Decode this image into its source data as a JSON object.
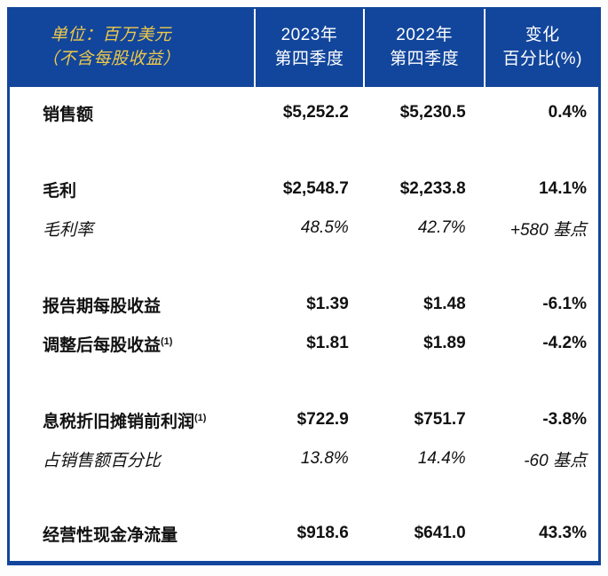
{
  "header": {
    "unit_line1": "单位：百万美元",
    "unit_line2": "（不含每股收益）",
    "col2023_line1": "2023年",
    "col2023_line2": "第四季度",
    "col2022_line1": "2022年",
    "col2022_line2": "第四季度",
    "change_line1": "变化",
    "change_line2": "百分比(%)"
  },
  "rows": [
    {
      "label": "销售额",
      "sup": "",
      "v2023": "$5,252.2",
      "v2022": "$5,230.5",
      "change": "0.4%"
    },
    {
      "label": "毛利",
      "sup": "",
      "v2023": "$2,548.7",
      "v2022": "$2,233.8",
      "change": "14.1%"
    },
    {
      "label": "毛利率",
      "sup": "",
      "v2023": "48.5%",
      "v2022": "42.7%",
      "change": "+580 基点"
    },
    {
      "label": "报告期每股收益",
      "sup": "",
      "v2023": "$1.39",
      "v2022": "$1.48",
      "change": "-6.1%"
    },
    {
      "label": "调整后每股收益",
      "sup": "(1)",
      "v2023": "$1.81",
      "v2022": "$1.89",
      "change": "-4.2%"
    },
    {
      "label": "息税折旧摊销前利润",
      "sup": "(1)",
      "v2023": "$722.9",
      "v2022": "$751.7",
      "change": "-3.8%"
    },
    {
      "label": "占销售额百分比",
      "sup": "",
      "v2023": "13.8%",
      "v2022": "14.4%",
      "change": "-60 基点"
    },
    {
      "label": "经营性现金净流量",
      "sup": "",
      "v2023": "$918.6",
      "v2022": "$641.0",
      "change": "43.3%"
    }
  ],
  "colors": {
    "header_bg": "#12469c",
    "border": "#12469c",
    "unit_text": "#eec84a",
    "header_text": "#ffffff",
    "body_text": "#111111",
    "divider": "#ffffff"
  }
}
